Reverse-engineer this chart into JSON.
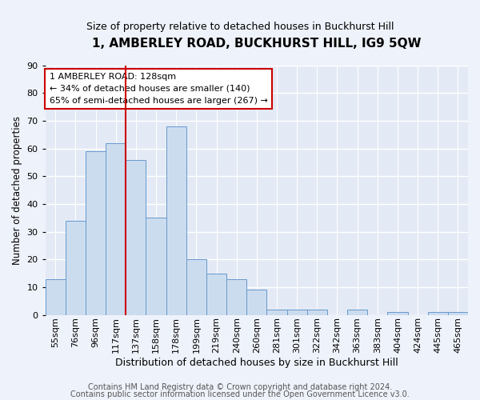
{
  "title": "1, AMBERLEY ROAD, BUCKHURST HILL, IG9 5QW",
  "subtitle": "Size of property relative to detached houses in Buckhurst Hill",
  "xlabel": "Distribution of detached houses by size in Buckhurst Hill",
  "ylabel": "Number of detached properties",
  "categories": [
    "55sqm",
    "76sqm",
    "96sqm",
    "117sqm",
    "137sqm",
    "158sqm",
    "178sqm",
    "199sqm",
    "219sqm",
    "240sqm",
    "260sqm",
    "281sqm",
    "301sqm",
    "322sqm",
    "342sqm",
    "363sqm",
    "383sqm",
    "404sqm",
    "424sqm",
    "445sqm",
    "465sqm"
  ],
  "values": [
    13,
    34,
    59,
    62,
    56,
    35,
    68,
    20,
    15,
    13,
    9,
    2,
    2,
    2,
    0,
    2,
    0,
    1,
    0,
    1,
    1
  ],
  "bar_color": "#ccdcef",
  "bar_edge_color": "#6699cc",
  "vline_x_index": 4,
  "vline_color": "#cc0000",
  "annotation_text": "1 AMBERLEY ROAD: 128sqm\n← 34% of detached houses are smaller (140)\n65% of semi-detached houses are larger (267) →",
  "annotation_box_facecolor": "#ffffff",
  "annotation_box_edgecolor": "#cc0000",
  "ylim": [
    0,
    90
  ],
  "yticks": [
    0,
    10,
    20,
    30,
    40,
    50,
    60,
    70,
    80,
    90
  ],
  "footer1": "Contains HM Land Registry data © Crown copyright and database right 2024.",
  "footer2": "Contains public sector information licensed under the Open Government Licence v3.0.",
  "bg_color": "#eef2fa",
  "plot_bg_color": "#e4eaf5",
  "grid_color": "#ffffff",
  "title_fontsize": 11,
  "subtitle_fontsize": 9,
  "xlabel_fontsize": 9,
  "ylabel_fontsize": 8.5,
  "tick_fontsize": 8,
  "annot_fontsize": 8,
  "footer_fontsize": 7
}
